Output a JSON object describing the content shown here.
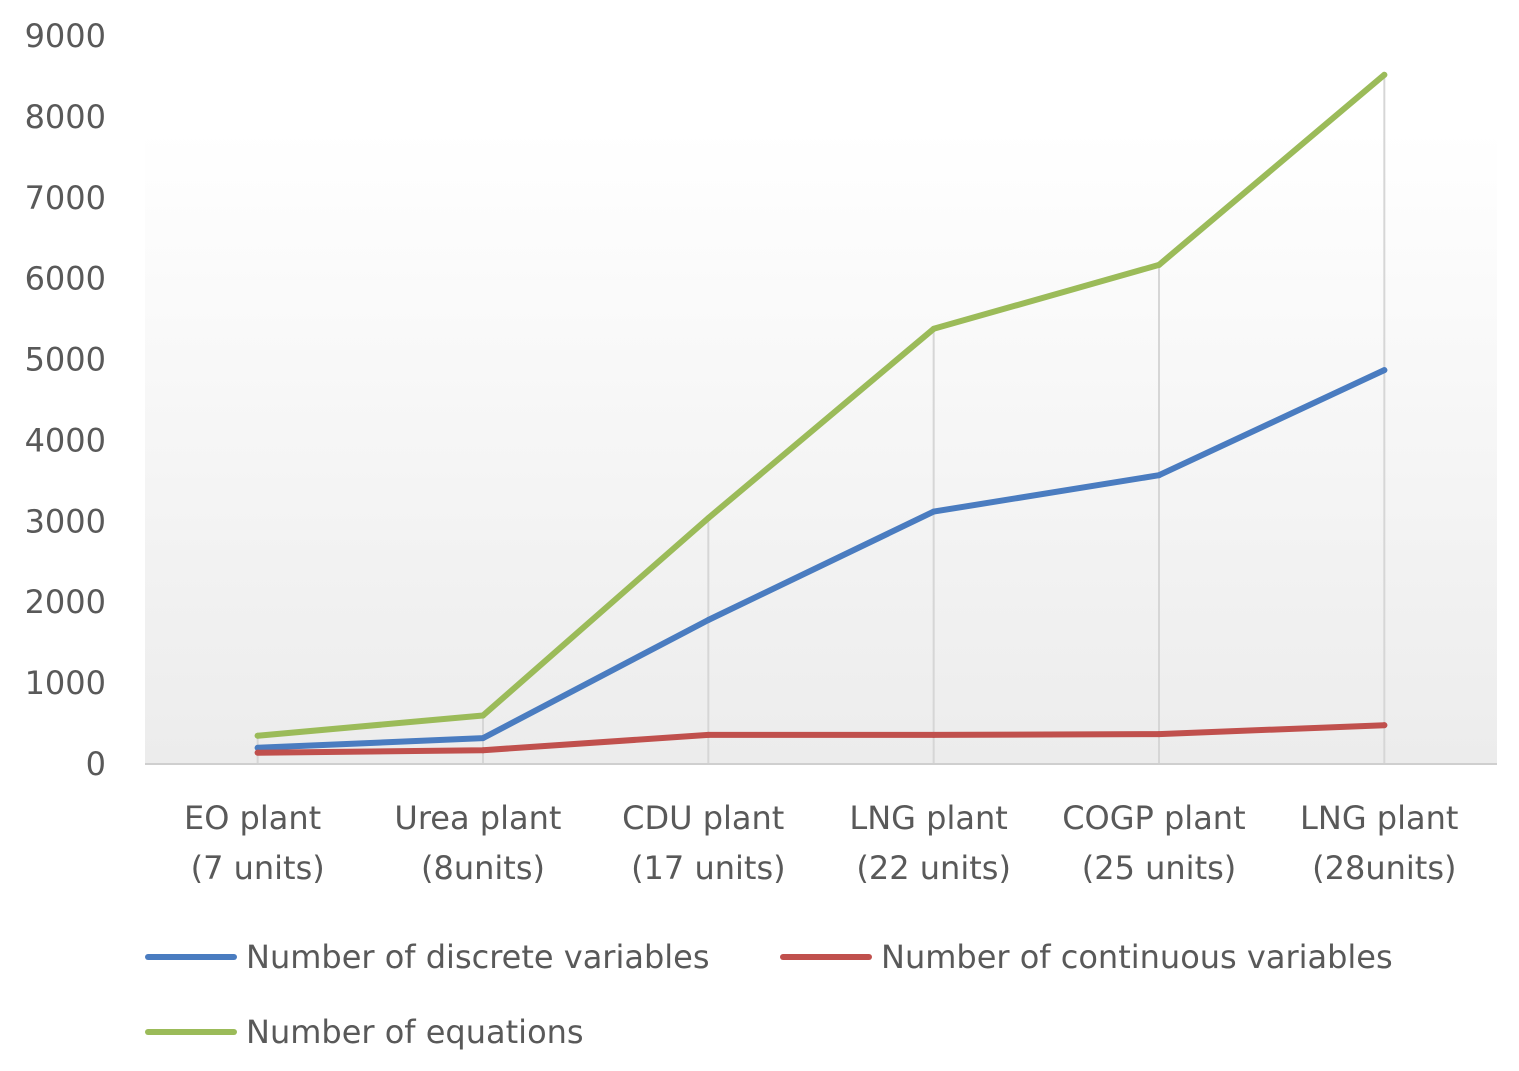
{
  "chart_data": {
    "type": "line",
    "title": "",
    "xlabel": "",
    "ylabel": "",
    "categories": [
      "EO plant (7 units)",
      "Urea plant (8units)",
      "CDU plant (17 units)",
      "LNG plant (22 units)",
      "COGP plant (25 units)",
      "LNG plant (28units)"
    ],
    "ylim": [
      0,
      9000
    ],
    "yticks": [
      0,
      1000,
      2000,
      3000,
      4000,
      5000,
      6000,
      7000,
      8000,
      9000
    ],
    "grid": false,
    "drop_lines": true,
    "legend_position": "bottom",
    "series": [
      {
        "name": "Number of discrete variables",
        "color": "#4A7CC0",
        "values": [
          200,
          320,
          1780,
          3120,
          3570,
          4870
        ]
      },
      {
        "name": "Number of continuous variables",
        "color": "#C0504D",
        "values": [
          140,
          170,
          360,
          360,
          370,
          480
        ]
      },
      {
        "name": "Number of equations",
        "color": "#9BBB59",
        "values": [
          350,
          600,
          3040,
          5380,
          6170,
          8520
        ]
      }
    ]
  }
}
